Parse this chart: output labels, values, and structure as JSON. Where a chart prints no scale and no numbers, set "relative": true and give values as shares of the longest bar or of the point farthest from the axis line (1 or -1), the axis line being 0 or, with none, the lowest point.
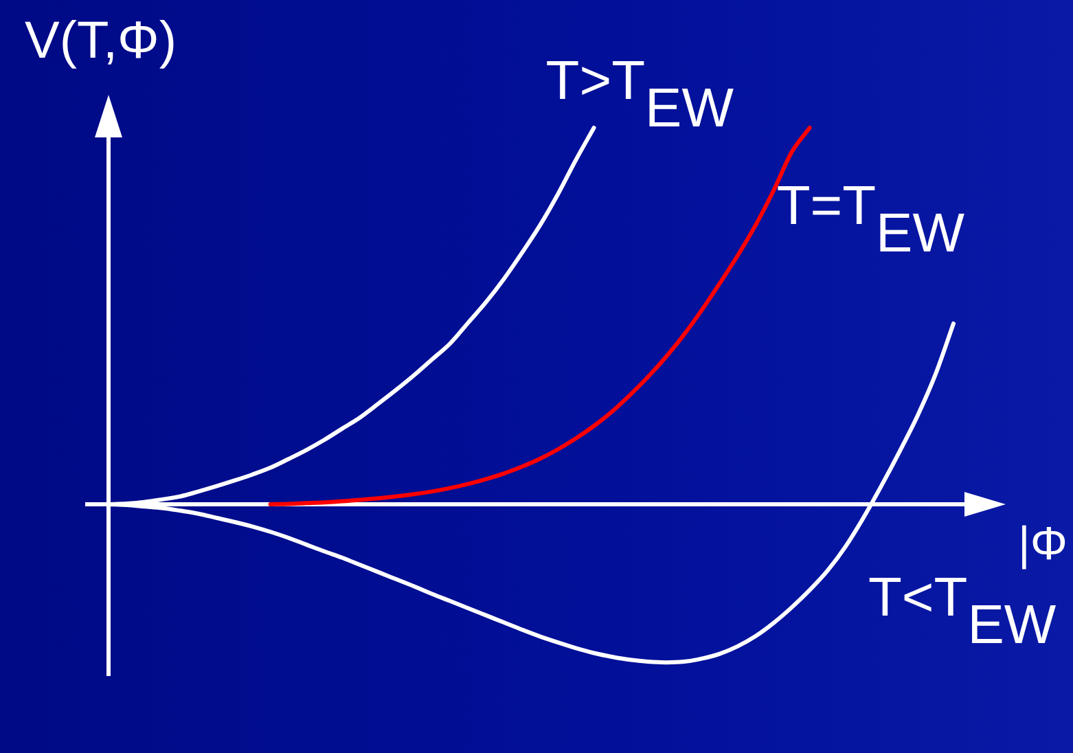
{
  "chart_data": {
    "type": "line",
    "relative": true,
    "xlabel": "|Φ",
    "ylabel": "V(T,Φ)",
    "categories": [
      null,
      null,
      null,
      null,
      null,
      null,
      null,
      null,
      null,
      null,
      null,
      null,
      null,
      null,
      null,
      null,
      null,
      null,
      null,
      null,
      null,
      null,
      null,
      null,
      null,
      null,
      null,
      null,
      null,
      null,
      null,
      null,
      null,
      null,
      null,
      null,
      null,
      null,
      null,
      null,
      null,
      null,
      null,
      null,
      null,
      null,
      null,
      null
    ],
    "series": [
      {
        "name": "T>T$_{EW}$",
        "color": "#ffffff",
        "values": [
          0,
          0.002,
          0.006,
          0.013,
          0.021,
          0.034,
          0.048,
          0.063,
          0.079,
          0.097,
          0.12,
          0.144,
          0.171,
          0.201,
          0.231,
          0.267,
          0.304,
          0.343,
          0.385,
          0.427,
          0.482,
          0.537,
          0.599,
          0.668,
          0.741,
          0.824,
          0.915,
          1,
          null,
          null,
          null,
          null,
          null,
          null,
          null,
          null,
          null,
          null,
          null,
          null,
          null,
          null,
          null,
          null,
          null,
          null,
          null,
          null
        ]
      },
      {
        "name": "T=T$_{EW}$",
        "color": "#ff0000",
        "values": [
          null,
          null,
          null,
          null,
          null,
          null,
          null,
          null,
          null,
          0,
          0.001,
          0.003,
          0.005,
          0.008,
          0.012,
          0.016,
          0.021,
          0.027,
          0.034,
          0.043,
          0.054,
          0.067,
          0.082,
          0.1,
          0.121,
          0.146,
          0.175,
          0.208,
          0.246,
          0.29,
          0.338,
          0.391,
          0.45,
          0.516,
          0.587,
          0.661,
          0.742,
          0.834,
          0.935,
          1,
          null,
          null,
          null,
          null,
          null,
          null,
          null,
          null
        ]
      },
      {
        "name": "T<T$_{EW}$",
        "color": "#ffffff",
        "values": [
          0,
          -0.002,
          -0.006,
          -0.01,
          -0.017,
          -0.025,
          -0.036,
          -0.047,
          -0.059,
          -0.073,
          -0.089,
          -0.107,
          -0.125,
          -0.142,
          -0.161,
          -0.18,
          -0.199,
          -0.218,
          -0.238,
          -0.257,
          -0.276,
          -0.295,
          -0.314,
          -0.333,
          -0.351,
          -0.367,
          -0.382,
          -0.395,
          -0.405,
          -0.413,
          -0.418,
          -0.42,
          -0.418,
          -0.41,
          -0.397,
          -0.377,
          -0.35,
          -0.315,
          -0.274,
          -0.228,
          -0.176,
          -0.112,
          -0.035,
          0.05,
          0.14,
          0.235,
          0.345,
          0.48
        ]
      }
    ],
    "marker": "none",
    "line_style": "solid",
    "grid": false,
    "tick_labels": false
  }
}
